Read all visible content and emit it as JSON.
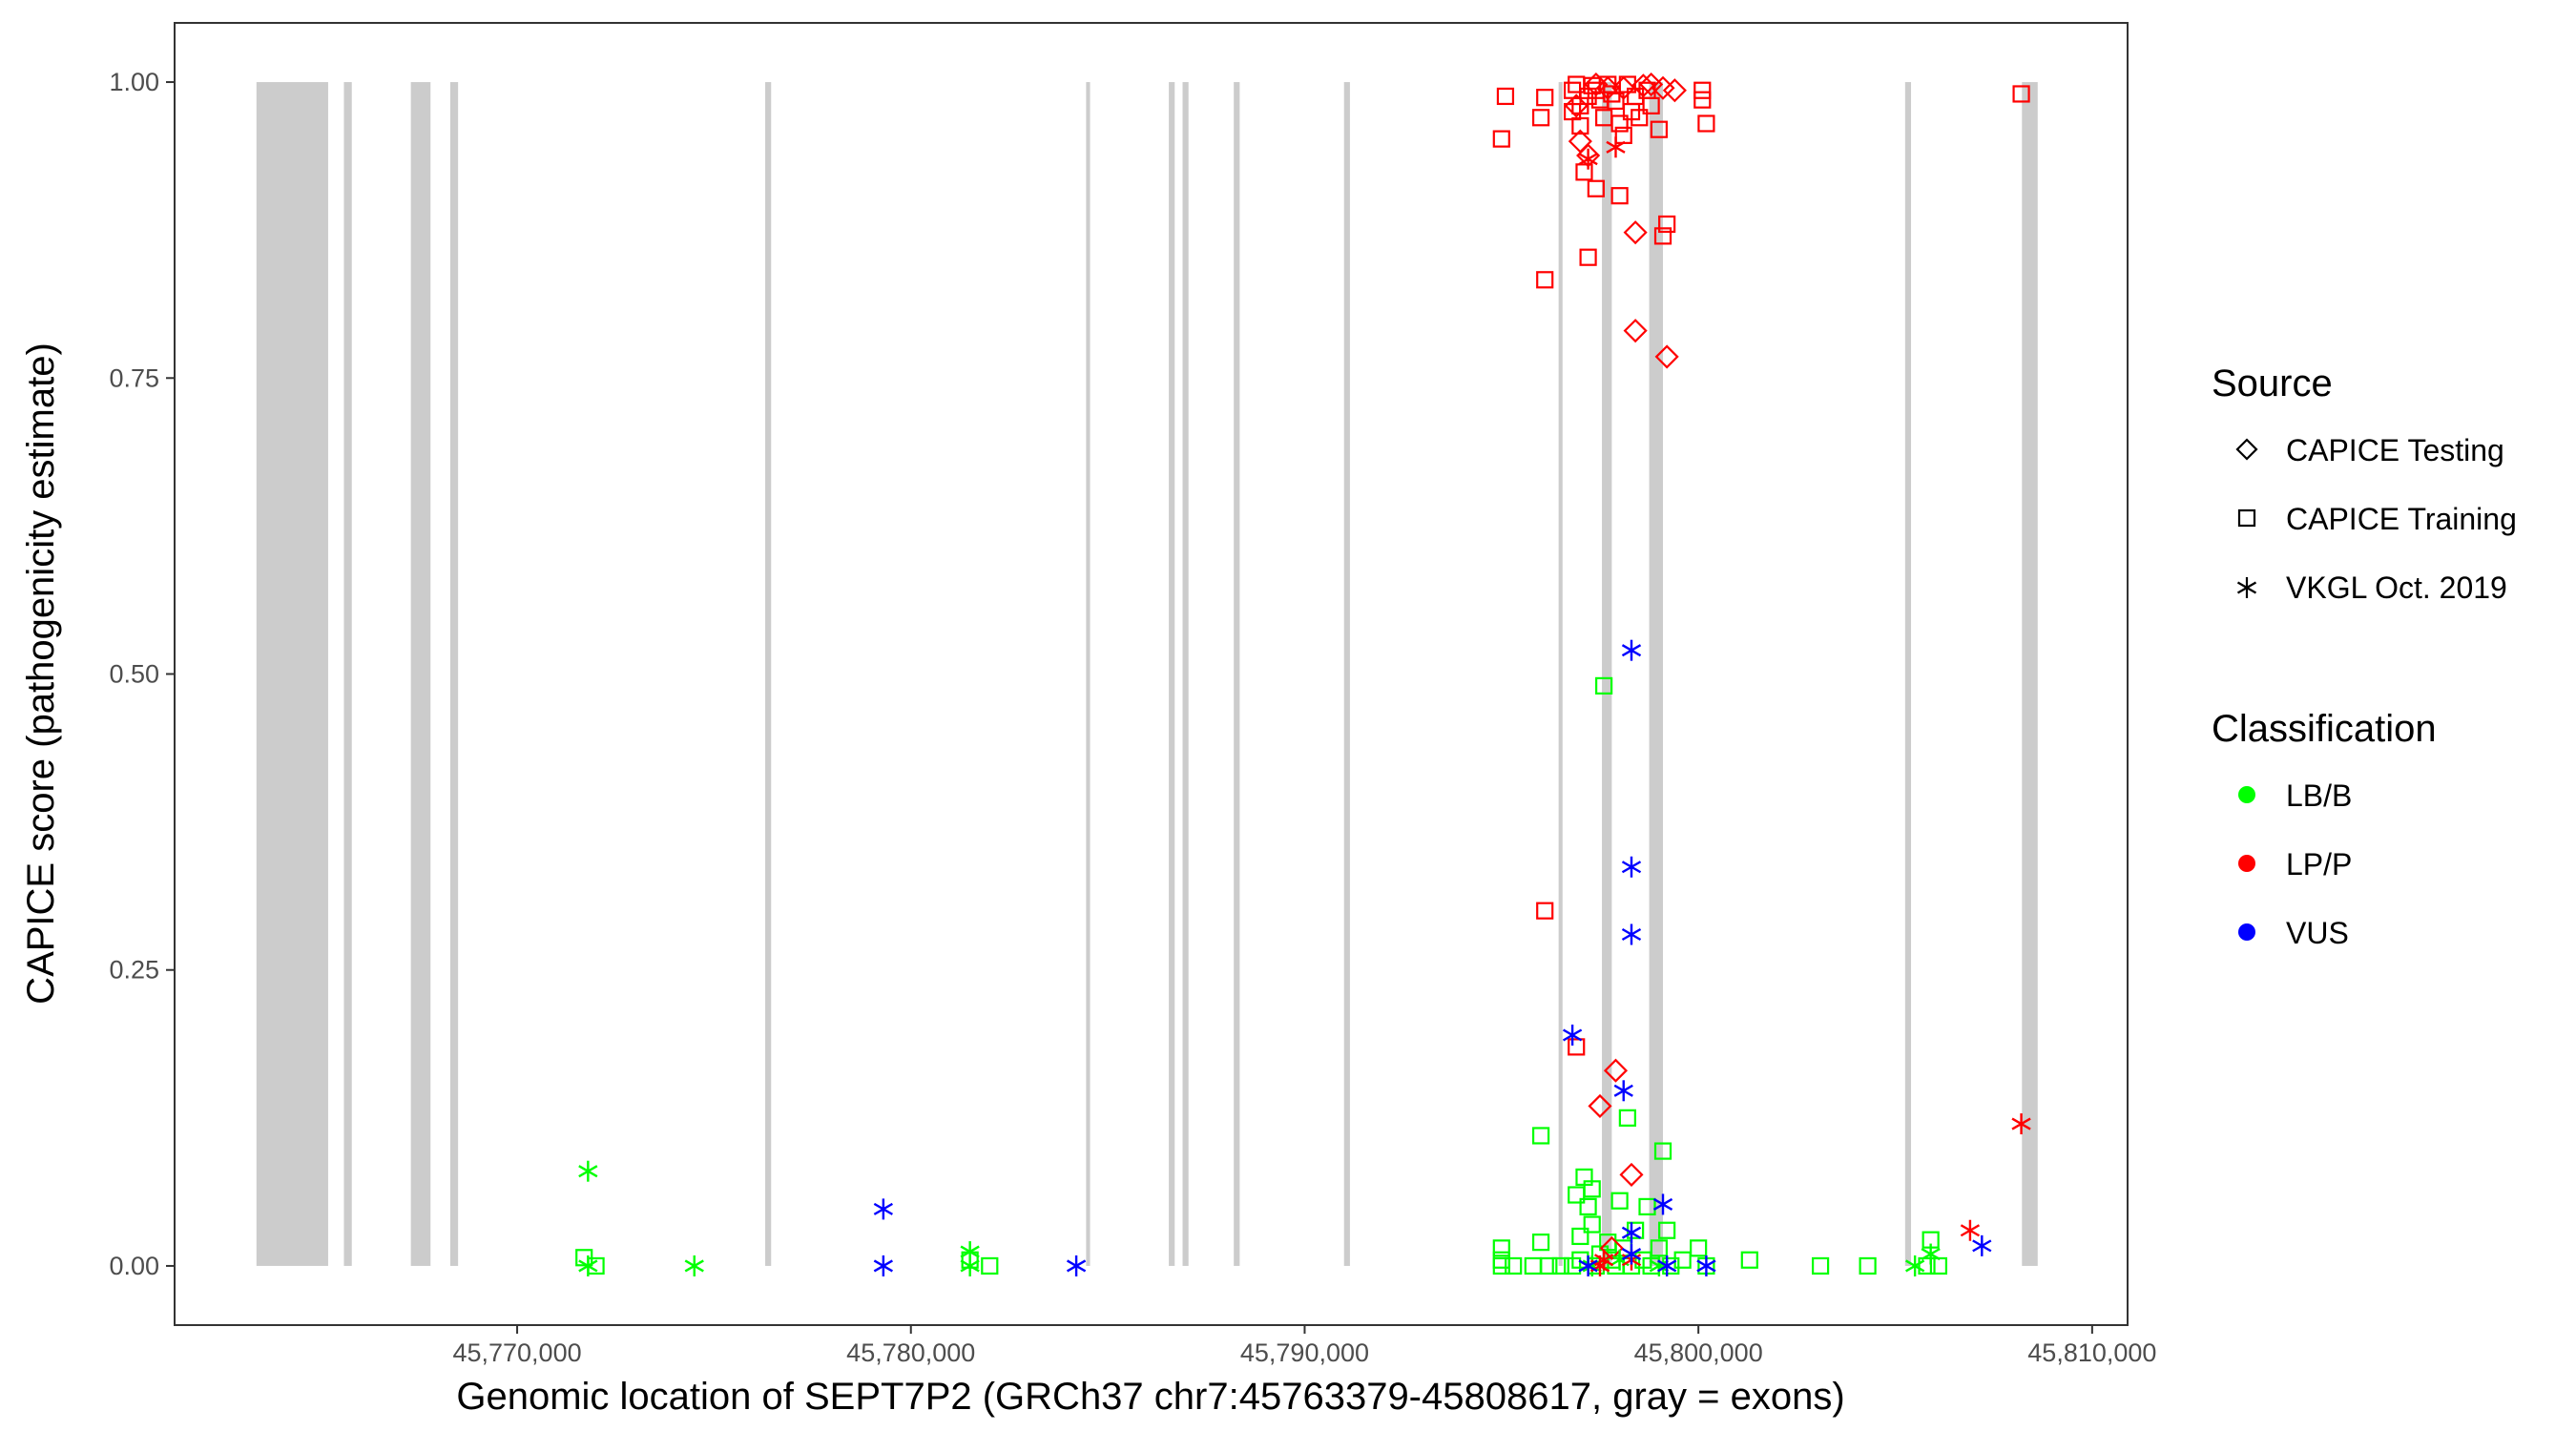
{
  "chart_data": {
    "type": "scatter",
    "title": "",
    "xlabel": "Genomic location of SEPT7P2 (GRCh37 chr7:45763379-45808617, gray = exons)",
    "ylabel": "CAPICE score (pathogenicity estimate)",
    "xlim": [
      45761300,
      45810900
    ],
    "ylim": [
      -0.05,
      1.05
    ],
    "x_ticks": [
      45770000,
      45780000,
      45790000,
      45800000,
      45810000
    ],
    "x_tick_labels": [
      "45,770,000",
      "45,780,000",
      "45,790,000",
      "45,800,000",
      "45,810,000"
    ],
    "y_ticks": [
      0,
      0.25,
      0.5,
      0.75,
      1.0
    ],
    "y_tick_labels": [
      "0.00",
      "0.25",
      "0.50",
      "0.75",
      "1.00"
    ],
    "grid": false,
    "exons": [
      [
        45763379,
        45765200
      ],
      [
        45765600,
        45765800
      ],
      [
        45767300,
        45767800
      ],
      [
        45768300,
        45768500
      ],
      [
        45776300,
        45776450
      ],
      [
        45784450,
        45784550
      ],
      [
        45786550,
        45786700
      ],
      [
        45786900,
        45787050
      ],
      [
        45788200,
        45788350
      ],
      [
        45791000,
        45791150
      ],
      [
        45796450,
        45796550
      ],
      [
        45797550,
        45797800
      ],
      [
        45798750,
        45799100
      ],
      [
        45805250,
        45805400
      ],
      [
        45808217,
        45808617
      ]
    ],
    "exon_color": "#cccccc",
    "legend": {
      "placement": "right",
      "source_title": "Source",
      "source_items": [
        {
          "label": "CAPICE Testing",
          "shape": "diamond"
        },
        {
          "label": "CAPICE Training",
          "shape": "square"
        },
        {
          "label": "VKGL Oct. 2019",
          "shape": "asterisk"
        }
      ],
      "classification_title": "Classification",
      "classification_items": [
        {
          "label": "LB/B",
          "color": "#00ff00"
        },
        {
          "label": "LP/P",
          "color": "#ff0000"
        },
        {
          "label": "VUS",
          "color": "#0000ff"
        }
      ]
    },
    "series": [
      {
        "name": "CAPICE Training LB/B",
        "shape": "square",
        "color": "#00ff00",
        "points": [
          [
            45771700,
            0.007
          ],
          [
            45772000,
            0.0
          ],
          [
            45781500,
            0.005
          ],
          [
            45782000,
            0.0
          ],
          [
            45795000,
            0.0
          ],
          [
            45795000,
            0.005
          ],
          [
            45795000,
            0.015
          ],
          [
            45795300,
            0.0
          ],
          [
            45795800,
            0.0
          ],
          [
            45796000,
            0.02
          ],
          [
            45796000,
            0.11
          ],
          [
            45796200,
            0.0
          ],
          [
            45796500,
            0.0
          ],
          [
            45796800,
            0.0
          ],
          [
            45796900,
            0.06
          ],
          [
            45797000,
            0.025
          ],
          [
            45797000,
            0.005
          ],
          [
            45797100,
            0.075
          ],
          [
            45797200,
            0.05
          ],
          [
            45797300,
            0.065
          ],
          [
            45797300,
            0.035
          ],
          [
            45797400,
            0.0
          ],
          [
            45797500,
            0.01
          ],
          [
            45797600,
            0.49
          ],
          [
            45797700,
            0.02
          ],
          [
            45797800,
            0.005
          ],
          [
            45797900,
            0.0
          ],
          [
            45798000,
            0.055
          ],
          [
            45798100,
            0.015
          ],
          [
            45798200,
            0.125
          ],
          [
            45798300,
            0.0
          ],
          [
            45798400,
            0.03
          ],
          [
            45798600,
            0.005
          ],
          [
            45798700,
            0.05
          ],
          [
            45798800,
            0.0
          ],
          [
            45799000,
            0.015
          ],
          [
            45799100,
            0.097
          ],
          [
            45799200,
            0.03
          ],
          [
            45799300,
            0.0
          ],
          [
            45799600,
            0.005
          ],
          [
            45800000,
            0.015
          ],
          [
            45800200,
            0.0
          ],
          [
            45801300,
            0.005
          ],
          [
            45803100,
            0.0
          ],
          [
            45804300,
            0.0
          ],
          [
            45805800,
            0.0
          ],
          [
            45805900,
            0.022
          ],
          [
            45806100,
            0.0
          ]
        ]
      },
      {
        "name": "CAPICE Training LP/P",
        "shape": "square",
        "color": "#ff0000",
        "points": [
          [
            45795000,
            0.952
          ],
          [
            45795100,
            0.988
          ],
          [
            45796000,
            0.97
          ],
          [
            45796100,
            0.987
          ],
          [
            45796100,
            0.833
          ],
          [
            45796100,
            0.3
          ],
          [
            45796800,
            0.993
          ],
          [
            45796800,
            0.975
          ],
          [
            45796900,
            0.998
          ],
          [
            45796900,
            0.185
          ],
          [
            45797000,
            0.963
          ],
          [
            45797000,
            0.98
          ],
          [
            45797100,
            0.924
          ],
          [
            45797200,
            0.852
          ],
          [
            45797200,
            0.988
          ],
          [
            45797300,
            0.997
          ],
          [
            45797400,
            0.91
          ],
          [
            45797400,
            0.993
          ],
          [
            45797500,
            0.985
          ],
          [
            45797600,
            0.97
          ],
          [
            45797700,
            0.998
          ],
          [
            45797800,
            0.99
          ],
          [
            45797900,
            0.984
          ],
          [
            45798000,
            0.965
          ],
          [
            45798000,
            0.904
          ],
          [
            45798100,
            0.955
          ],
          [
            45798200,
            0.998
          ],
          [
            45798300,
            0.975
          ],
          [
            45798400,
            0.988
          ],
          [
            45798500,
            0.97
          ],
          [
            45798700,
            0.993
          ],
          [
            45798800,
            0.98
          ],
          [
            45799000,
            0.96
          ],
          [
            45799100,
            0.87
          ],
          [
            45799200,
            0.88
          ],
          [
            45800100,
            0.993
          ],
          [
            45800100,
            0.985
          ],
          [
            45800200,
            0.965
          ],
          [
            45808200,
            0.99
          ]
        ]
      },
      {
        "name": "CAPICE Testing LP/P",
        "shape": "diamond",
        "color": "#ff0000",
        "points": [
          [
            45796900,
            0.98
          ],
          [
            45797000,
            0.95
          ],
          [
            45797200,
            0.938
          ],
          [
            45797400,
            0.998
          ],
          [
            45797500,
            0.135
          ],
          [
            45797700,
            0.995
          ],
          [
            45797800,
            0.015
          ],
          [
            45797900,
            0.165
          ],
          [
            45798100,
            0.995
          ],
          [
            45798300,
            0.077
          ],
          [
            45798400,
            0.873
          ],
          [
            45798400,
            0.79
          ],
          [
            45798600,
            0.997
          ],
          [
            45798800,
            0.998
          ],
          [
            45799100,
            0.995
          ],
          [
            45799200,
            0.768
          ],
          [
            45799400,
            0.993
          ]
        ]
      },
      {
        "name": "VKGL Oct. 2019 LB/B",
        "shape": "asterisk",
        "color": "#00ff00",
        "points": [
          [
            45771800,
            0.08
          ],
          [
            45771800,
            0.0
          ],
          [
            45774500,
            0.0
          ],
          [
            45781500,
            0.012
          ],
          [
            45781500,
            0.0
          ],
          [
            45797300,
            0.0
          ],
          [
            45798000,
            0.005
          ],
          [
            45799000,
            0.0
          ],
          [
            45805500,
            0.0
          ],
          [
            45805900,
            0.01
          ]
        ]
      },
      {
        "name": "VKGL Oct. 2019 LP/P",
        "shape": "asterisk",
        "color": "#ff0000",
        "points": [
          [
            45797200,
            0.935
          ],
          [
            45797500,
            0.0
          ],
          [
            45797600,
            0.005
          ],
          [
            45797900,
            0.945
          ],
          [
            45798300,
            0.005
          ],
          [
            45806900,
            0.03
          ],
          [
            45808200,
            0.12
          ]
        ]
      },
      {
        "name": "VKGL Oct. 2019 VUS",
        "shape": "asterisk",
        "color": "#0000ff",
        "points": [
          [
            45779300,
            0.048
          ],
          [
            45779300,
            0.0
          ],
          [
            45784200,
            0.0
          ],
          [
            45796800,
            0.195
          ],
          [
            45797200,
            0.0
          ],
          [
            45798100,
            0.148
          ],
          [
            45798300,
            0.52
          ],
          [
            45798300,
            0.337
          ],
          [
            45798300,
            0.28
          ],
          [
            45798300,
            0.028
          ],
          [
            45798300,
            0.01
          ],
          [
            45799100,
            0.052
          ],
          [
            45799200,
            0.0
          ],
          [
            45800200,
            0.0
          ],
          [
            45807200,
            0.017
          ]
        ]
      }
    ]
  }
}
